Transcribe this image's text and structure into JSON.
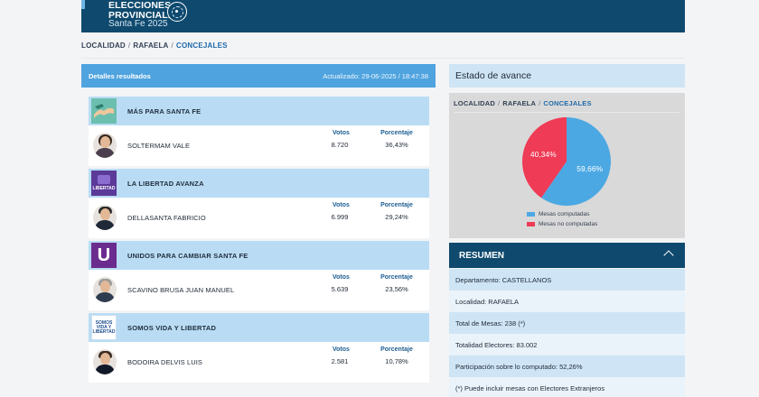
{
  "header": {
    "brand_line1": "ELECCIONES",
    "brand_line2": "PROVINCIALES",
    "brand_line3": "Santa Fe 2025",
    "colors": {
      "primary": "#0f4a6e",
      "accent": "#4fa3de"
    }
  },
  "breadcrumb": [
    "LOCALIDAD",
    "RAFAELA",
    "CONCEJALES"
  ],
  "results": {
    "title": "Detalles resultados",
    "updated": "Actualizado: 29-06-2025 / 18:47:38",
    "entries": [
      {
        "party": "MÁS PARA SANTA FE",
        "logo_icon": "hands-logo-icon",
        "candidate": "SOLTERMAM VALE",
        "votes_label": "Votos",
        "pct_label": "Porcentaje",
        "votes": "8.720",
        "pct": "36,43%"
      },
      {
        "party": "LA LIBERTAD AVANZA",
        "logo_icon": "lla-logo-icon",
        "logo_text": "LIBERTAD",
        "candidate": "DELLASANTA FABRICIO",
        "votes_label": "Votos",
        "pct_label": "Porcentaje",
        "votes": "6.999",
        "pct": "29,24%"
      },
      {
        "party": "UNIDOS PARA CAMBIAR SANTA FE",
        "logo_icon": "unidos-logo-icon",
        "logo_text": "U",
        "candidate": "SCAVINO BRUSA JUAN MANUEL",
        "votes_label": "Votos",
        "pct_label": "Porcentaje",
        "votes": "5.639",
        "pct": "23,56%"
      },
      {
        "party": "SOMOS VIDA Y LIBERTAD",
        "logo_icon": "somos-logo-icon",
        "logo_text": "SOMOS VIDA Y LIBERTAD",
        "candidate": "BODOIRA DELVIS LUIS",
        "votes_label": "Votos",
        "pct_label": "Porcentaje",
        "votes": "2.581",
        "pct": "10,78%"
      }
    ]
  },
  "avance": {
    "title": "Estado de avance",
    "breadcrumb": [
      "LOCALIDAD",
      "RAFAELA",
      "CONCEJALES"
    ]
  },
  "chart_data": {
    "type": "pie",
    "slices": [
      {
        "label": "Mesas computadas",
        "value": 59.66,
        "display": "59,66%",
        "color": "#4ba8e3"
      },
      {
        "label": "Mesas no computadas",
        "value": 40.34,
        "display": "40,34%",
        "color": "#ef3b55"
      }
    ],
    "legend": "bottom"
  },
  "summary": {
    "title": "RESUMEN",
    "rows": [
      "Departamento: CASTELLANOS",
      "Localidad: RAFAELA",
      "Total de Mesas: 238 (*)",
      "Totalidad Electores: 83.002",
      "Participación sobre lo computado: 52,26%",
      "(*) Puede incluir mesas con Electores Extranjeros"
    ]
  }
}
